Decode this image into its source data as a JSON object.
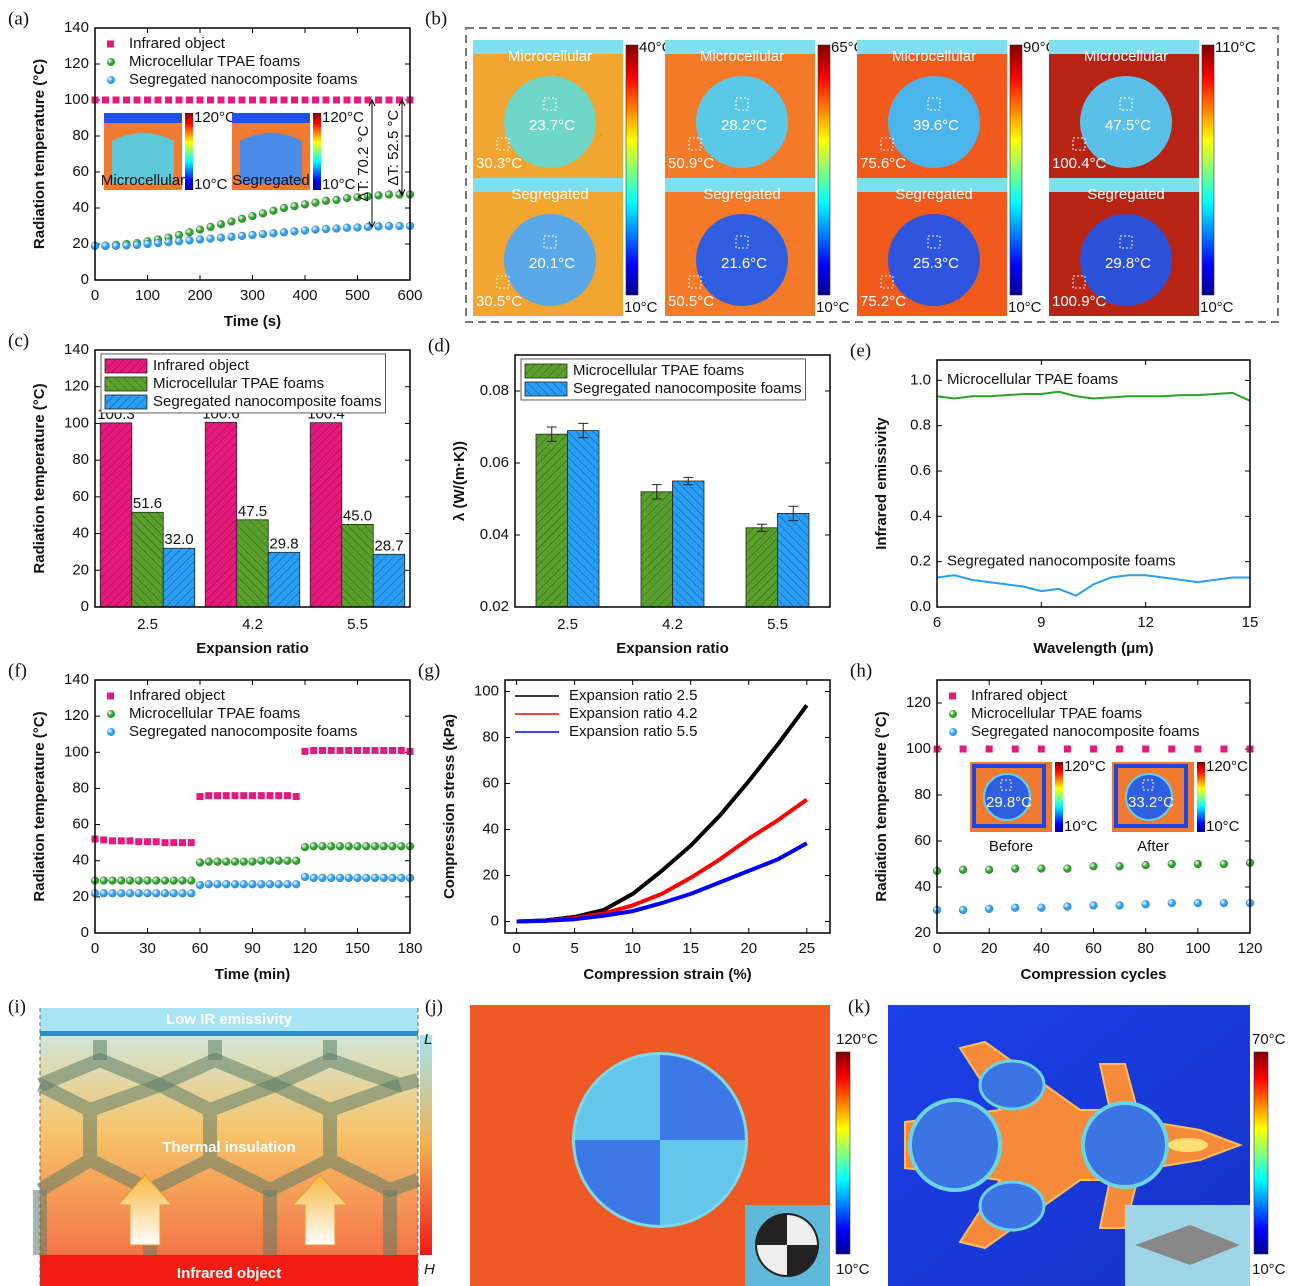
{
  "chart_data": [
    {
      "panel": "(a)",
      "type": "scatter",
      "xlabel": "Time (s)",
      "ylabel": "Radiation temperature (°C)",
      "x": [
        0,
        20,
        40,
        60,
        80,
        100,
        120,
        140,
        160,
        180,
        200,
        220,
        240,
        260,
        280,
        300,
        320,
        340,
        360,
        380,
        400,
        420,
        440,
        460,
        480,
        500,
        520,
        540,
        560,
        580,
        600
      ],
      "series": [
        {
          "name": "Infrared object",
          "color": "#e8197d",
          "marker": "square",
          "values": [
            100,
            100,
            100,
            100,
            100,
            100,
            100,
            100,
            100,
            100,
            100,
            100,
            100,
            100,
            100,
            100,
            100,
            100,
            100,
            100,
            100,
            100,
            100,
            100,
            100,
            100,
            100,
            100,
            100,
            100,
            100
          ]
        },
        {
          "name": "Microcellular TPAE foams",
          "color": "#2ea02c",
          "values": [
            19,
            19,
            19.5,
            20,
            20.5,
            21.5,
            22.5,
            23.5,
            25,
            26.5,
            28,
            29.5,
            31,
            32.5,
            34,
            35.5,
            37,
            38.5,
            40,
            41,
            42,
            43,
            44,
            44.5,
            45.5,
            46,
            46.5,
            47,
            47.5,
            47.5,
            47.5
          ]
        },
        {
          "name": "Segregated nanocomposite foams",
          "color": "#2a9df4",
          "values": [
            19,
            19,
            19,
            19.2,
            19.5,
            20,
            20.5,
            21,
            21.5,
            22,
            22.5,
            23,
            23.5,
            24,
            24.5,
            25,
            25.5,
            26,
            26.5,
            27,
            27.5,
            28,
            28.3,
            28.6,
            29,
            29.2,
            29.5,
            29.8,
            30,
            30,
            30
          ]
        }
      ],
      "xlim": [
        0,
        600
      ],
      "ylim": [
        0,
        140
      ],
      "xticks": [
        0,
        100,
        200,
        300,
        400,
        500,
        600
      ],
      "yticks": [
        0,
        20,
        40,
        60,
        80,
        100,
        120,
        140
      ],
      "legend": "upper left",
      "annotations": [
        "ΔT: 70.2 °C",
        "ΔT: 52.5 °C"
      ],
      "insets": [
        {
          "label": "Microcellular",
          "max": "120°C",
          "min": "10°C"
        },
        {
          "label": "Segregated",
          "max": "120°C",
          "min": "10°C"
        }
      ]
    },
    {
      "panel": "(c)",
      "type": "bar",
      "xlabel": "Expansion ratio",
      "ylabel": "Radiation temperature (°C)",
      "categories": [
        "2.5",
        "4.2",
        "5.5"
      ],
      "series": [
        {
          "name": "Infrared object",
          "color": "#e8197d",
          "values": [
            100.3,
            100.6,
            100.4
          ],
          "value_labels": [
            "100.3",
            "100.6",
            "100.4"
          ]
        },
        {
          "name": "Microcellular TPAE foams",
          "color": "#5aa02c",
          "values": [
            51.6,
            47.5,
            45.0
          ],
          "value_labels": [
            "51.6",
            "47.5",
            "45.0"
          ]
        },
        {
          "name": "Segregated nanocomposite foams",
          "color": "#2a9df4",
          "values": [
            32.0,
            29.8,
            28.7
          ],
          "value_labels": [
            "32.0",
            "29.8",
            "28.7"
          ]
        }
      ],
      "ylim": [
        0,
        140
      ],
      "yticks": [
        0,
        20,
        40,
        60,
        80,
        100,
        120,
        140
      ],
      "legend": "upper left"
    },
    {
      "panel": "(d)",
      "type": "bar",
      "xlabel": "Expansion ratio",
      "ylabel": "λ (W/(m·K))",
      "categories": [
        "2.5",
        "4.2",
        "5.5"
      ],
      "series": [
        {
          "name": "Microcellular TPAE foams",
          "color": "#5aa02c",
          "values": [
            0.068,
            0.052,
            0.042
          ],
          "errors": [
            0.002,
            0.002,
            0.001
          ]
        },
        {
          "name": "Segregated nanocomposite foams",
          "color": "#2a9df4",
          "values": [
            0.069,
            0.055,
            0.046
          ],
          "errors": [
            0.002,
            0.001,
            0.002
          ]
        }
      ],
      "ylim": [
        0.02,
        0.09
      ],
      "yticks": [
        0.02,
        0.04,
        0.06,
        0.08
      ],
      "legend": "upper left"
    },
    {
      "panel": "(e)",
      "type": "line",
      "xlabel": "Wavelength (μm)",
      "ylabel": "Infrared emissivity",
      "x": [
        6,
        6.5,
        7,
        7.5,
        8,
        8.5,
        9,
        9.5,
        10,
        10.5,
        11,
        11.5,
        12,
        12.5,
        13,
        13.5,
        14,
        14.5,
        15
      ],
      "series": [
        {
          "name": "Microcellular TPAE foams",
          "color": "#2ea02c",
          "values": [
            0.93,
            0.92,
            0.93,
            0.93,
            0.935,
            0.94,
            0.94,
            0.95,
            0.93,
            0.92,
            0.925,
            0.93,
            0.93,
            0.93,
            0.935,
            0.935,
            0.94,
            0.945,
            0.91
          ]
        },
        {
          "name": "Segregated nanocomposite foams",
          "color": "#2a9df4",
          "values": [
            0.13,
            0.14,
            0.12,
            0.11,
            0.1,
            0.09,
            0.07,
            0.08,
            0.05,
            0.1,
            0.13,
            0.14,
            0.14,
            0.13,
            0.12,
            0.11,
            0.12,
            0.13,
            0.13
          ]
        }
      ],
      "xlim": [
        6,
        15
      ],
      "ylim": [
        0,
        1.09
      ],
      "xticks": [
        6,
        9,
        12,
        15
      ],
      "yticks": [
        {
          "value": 0,
          "label": "0.0"
        },
        0.2,
        0.4,
        0.6,
        0.8,
        {
          "value": 1,
          "label": "1.0"
        }
      ]
    },
    {
      "panel": "(f)",
      "type": "scatter",
      "xlabel": "Time (min)",
      "ylabel": "Radiation temperature (°C)",
      "x": [
        0,
        5,
        10,
        15,
        20,
        25,
        30,
        35,
        40,
        45,
        50,
        55,
        60,
        65,
        70,
        75,
        80,
        85,
        90,
        95,
        100,
        105,
        110,
        115,
        120,
        125,
        130,
        135,
        140,
        145,
        150,
        155,
        160,
        165,
        170,
        175,
        180
      ],
      "series": [
        {
          "name": "Infrared object",
          "color": "#e8197d",
          "marker": "square",
          "values": [
            52,
            51.5,
            51,
            51,
            51,
            50.5,
            50.5,
            50.5,
            50,
            50,
            50,
            50,
            75.5,
            76,
            76,
            76,
            76,
            76,
            76,
            76,
            76,
            76,
            76,
            75.5,
            100.5,
            101,
            101,
            101,
            101,
            101,
            101,
            101,
            101,
            101,
            101,
            101,
            100.5
          ]
        },
        {
          "name": "Microcellular TPAE foams",
          "color": "#2ea02c",
          "values": [
            29,
            29,
            29,
            29,
            29,
            29,
            29,
            29,
            29,
            29,
            29,
            29,
            39,
            39.5,
            39.5,
            39.5,
            39.5,
            39.5,
            39.5,
            40,
            40,
            40,
            40,
            40,
            47.5,
            48,
            48,
            48,
            48,
            48,
            48,
            48,
            48,
            48,
            48,
            48,
            48
          ]
        },
        {
          "name": "Segregated nanocomposite foams",
          "color": "#2a9df4",
          "values": [
            22,
            22,
            22,
            22,
            22,
            22,
            22,
            22,
            22,
            22,
            22,
            22,
            26.5,
            27,
            27,
            27,
            27,
            27,
            27,
            27,
            27,
            27,
            27,
            27,
            31,
            30.5,
            30.5,
            30.5,
            30.5,
            30.5,
            30.5,
            30.5,
            30.5,
            30.5,
            30.5,
            30.5,
            30.5
          ]
        }
      ],
      "xlim": [
        0,
        180
      ],
      "ylim": [
        0,
        140
      ],
      "xticks": [
        0,
        30,
        60,
        90,
        120,
        150,
        180
      ],
      "yticks": [
        0,
        20,
        40,
        60,
        80,
        100,
        120,
        140
      ],
      "legend": "upper left"
    },
    {
      "panel": "(g)",
      "type": "line",
      "xlabel": "Compression strain (%)",
      "ylabel": "Compression stress (kPa)",
      "x": [
        0,
        2.5,
        5,
        7.5,
        10,
        12.5,
        15,
        17.5,
        20,
        22.5,
        25
      ],
      "series": [
        {
          "name": "Expansion ratio 2.5",
          "color": "#000000",
          "values": [
            0,
            0.5,
            2,
            5,
            12,
            22,
            33,
            46,
            61,
            77,
            94
          ]
        },
        {
          "name": "Expansion ratio 4.2",
          "color": "#ff0000",
          "values": [
            0,
            0.3,
            1.5,
            3.5,
            7,
            12,
            19,
            27,
            36,
            44,
            53
          ]
        },
        {
          "name": "Expansion ratio 5.5",
          "color": "#0000ff",
          "values": [
            0,
            0.3,
            1,
            2.5,
            4.5,
            8,
            12,
            17,
            22,
            27,
            34
          ]
        }
      ],
      "xlim": [
        -1,
        27
      ],
      "ylim": [
        -5,
        105
      ],
      "xticks": [
        0,
        5,
        10,
        15,
        20,
        25
      ],
      "yticks": [
        0,
        20,
        40,
        60,
        80,
        100
      ],
      "legend": "upper left"
    },
    {
      "panel": "(h)",
      "type": "scatter",
      "xlabel": "Compression cycles",
      "ylabel": "Radiation temperature (°C)",
      "x": [
        0,
        10,
        20,
        30,
        40,
        50,
        60,
        70,
        80,
        90,
        100,
        110,
        120
      ],
      "series": [
        {
          "name": "Infrared object",
          "color": "#e8197d",
          "marker": "square",
          "values": [
            100,
            100,
            100,
            100,
            100,
            100,
            100,
            100,
            100,
            100,
            100,
            100,
            100
          ]
        },
        {
          "name": "Microcellular TPAE foams",
          "color": "#2ea02c",
          "values": [
            47,
            47.5,
            47.5,
            48,
            48,
            48,
            49,
            49,
            49.5,
            50,
            50,
            50,
            50.5
          ]
        },
        {
          "name": "Segregated nanocomposite foams",
          "color": "#2a9df4",
          "values": [
            30,
            30,
            30.5,
            31,
            31,
            31.5,
            32,
            32,
            32.5,
            33,
            33,
            33,
            33
          ]
        }
      ],
      "xlim": [
        0,
        120
      ],
      "ylim": [
        20,
        130
      ],
      "xticks": [
        0,
        20,
        40,
        60,
        80,
        100,
        120
      ],
      "yticks": [
        20,
        40,
        60,
        80,
        100,
        120
      ],
      "legend": "upper left",
      "insets": [
        {
          "label": "Before",
          "max": "120°C",
          "min": "10°C",
          "value": "29.8°C"
        },
        {
          "label": "After",
          "max": "120°C",
          "min": "10°C",
          "value": "33.2°C"
        }
      ]
    }
  ],
  "images": {
    "b": {
      "panel": "(b)",
      "columns": [
        {
          "max": "40°C",
          "min": "10°C",
          "tiles": [
            {
              "label": "Microcellular",
              "center": "23.7°C",
              "corner": "30.3°C"
            },
            {
              "label": "Segregated",
              "center": "20.1°C",
              "corner": "30.5°C"
            }
          ]
        },
        {
          "max": "65°C",
          "min": "10°C",
          "tiles": [
            {
              "label": "Microcellular",
              "center": "28.2°C",
              "corner": "50.9°C"
            },
            {
              "label": "Segregated",
              "center": "21.6°C",
              "corner": "50.5°C"
            }
          ]
        },
        {
          "max": "90°C",
          "min": "10°C",
          "tiles": [
            {
              "label": "Microcellular",
              "center": "39.6°C",
              "corner": "75.6°C"
            },
            {
              "label": "Segregated",
              "center": "25.3°C",
              "corner": "75.2°C"
            }
          ]
        },
        {
          "max": "110°C",
          "min": "10°C",
          "tiles": [
            {
              "label": "Microcellular",
              "center": "47.5°C",
              "corner": "100.4°C"
            },
            {
              "label": "Segregated",
              "center": "29.8°C",
              "corner": "100.9°C"
            }
          ]
        }
      ]
    },
    "i": {
      "panel": "(i)",
      "top": "Low IR emissivity",
      "middle": "Thermal insulation",
      "bottom": "Infrared object",
      "scale_top": "L",
      "scale_bottom": "H"
    },
    "j": {
      "panel": "(j)",
      "max": "120°C",
      "min": "10°C"
    },
    "k": {
      "panel": "(k)",
      "max": "70°C",
      "min": "10°C"
    }
  }
}
